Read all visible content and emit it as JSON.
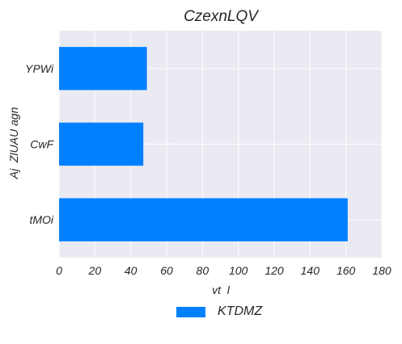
{
  "chart_data": {
    "type": "bar",
    "orientation": "horizontal",
    "title": "CzexnLQV",
    "xlabel": "vt  l",
    "ylabel": "Aj  ZlUAU agn",
    "categories": [
      "YPWi",
      "CwF",
      "tMOi"
    ],
    "series": [
      {
        "name": "KTDMZ",
        "values": [
          49,
          47,
          161
        ],
        "color": "#0080ff"
      }
    ],
    "xlim": [
      0,
      180
    ],
    "xticks": [
      "0",
      "20",
      "40",
      "60",
      "80",
      "100",
      "120",
      "140",
      "160",
      "180"
    ],
    "grid": true,
    "legend_position": "bottom-center",
    "background": "#eaeaf2"
  }
}
